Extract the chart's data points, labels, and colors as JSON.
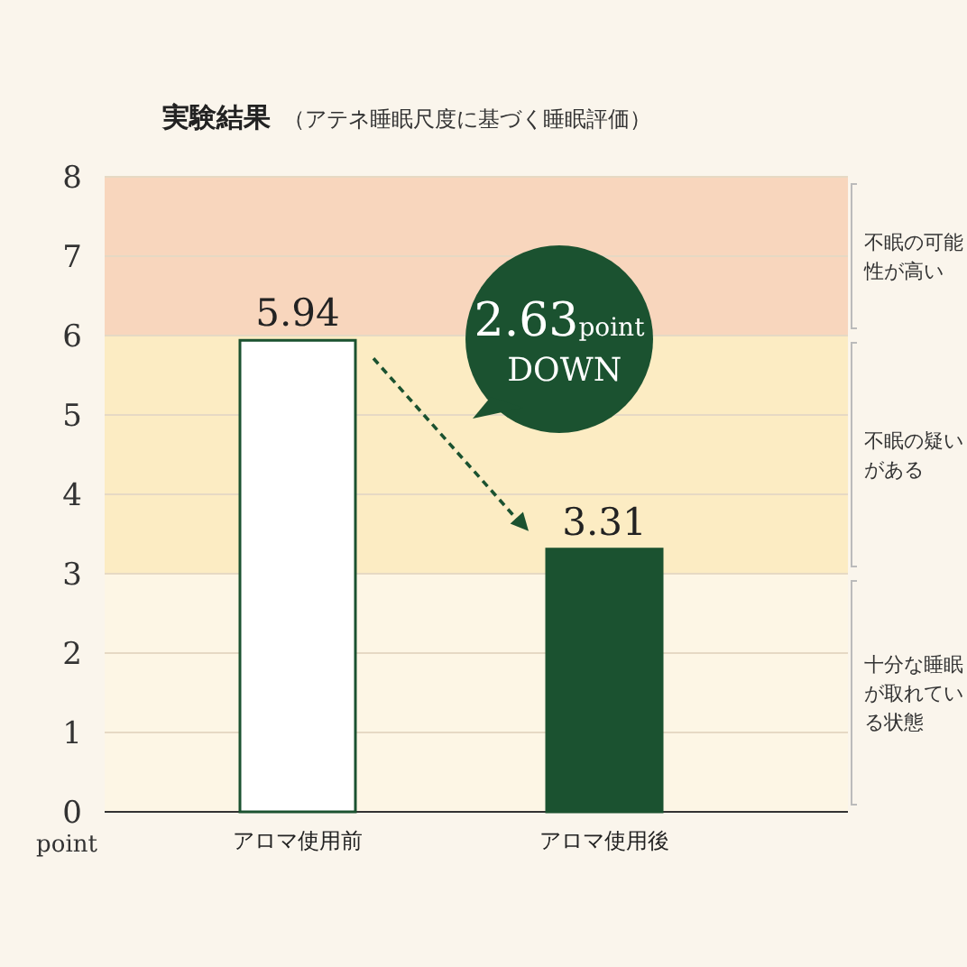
{
  "chart_data": {
    "type": "bar",
    "title": "実験結果",
    "subtitle": "（アテネ睡眠尺度に基づく睡眠評価）",
    "ylabel": "point",
    "categories": [
      "アロマ使用前",
      "アロマ使用後"
    ],
    "values": [
      5.94,
      3.31
    ],
    "colors": [
      "#ffffff",
      "#1b5230"
    ],
    "ylim": [
      0,
      8
    ],
    "yticks": [
      0,
      1,
      2,
      3,
      4,
      5,
      6,
      7,
      8
    ],
    "grid": "y",
    "data_labels": true,
    "bands": [
      {
        "axis": "y",
        "from": 6,
        "to": 8,
        "label": "不眠の可能性が高い",
        "color": "#f8d6bd"
      },
      {
        "axis": "y",
        "from": 3,
        "to": 6,
        "label": "不眠の疑いがある",
        "color": "#fcecc3"
      },
      {
        "axis": "y",
        "from": 0,
        "to": 3,
        "label": "十分な睡眠が取れている状態",
        "color": "#fdf6e5"
      }
    ],
    "annotations": [
      "2.63point DOWN"
    ]
  }
}
